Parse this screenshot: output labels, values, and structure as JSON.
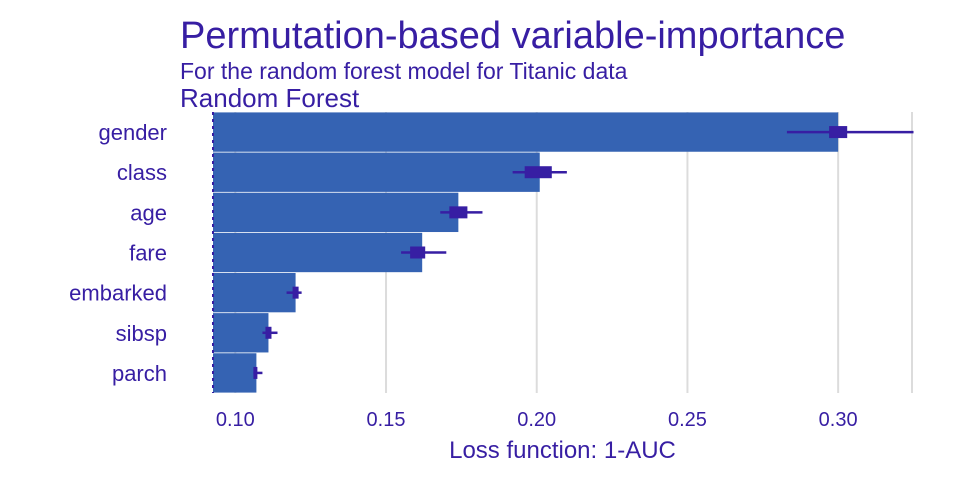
{
  "header": {
    "title": "Permutation-based variable-importance",
    "subtitle": "For the random forest model for Titanic data",
    "model_label": "Random Forest"
  },
  "colors": {
    "bar": "#3563b3",
    "whisker": "#371ea3",
    "text": "#371ea3",
    "grid": "#dcdcdc",
    "baseline": "#371ea3"
  },
  "chart_data": {
    "type": "bar",
    "orientation": "horizontal",
    "title": "Permutation-based variable-importance",
    "subtitle": "For the random forest model for Titanic data",
    "xlabel": "Loss function: 1-AUC",
    "ylabel": "",
    "baseline": 0.0926,
    "xlim": [
      0.0926,
      0.3245
    ],
    "xticks": [
      0.1,
      0.15,
      0.2,
      0.25,
      0.3
    ],
    "xtick_labels": [
      "0.10",
      "0.15",
      "0.20",
      "0.25",
      "0.30"
    ],
    "grid": true,
    "categories": [
      "gender",
      "class",
      "age",
      "fare",
      "embarked",
      "sibsp",
      "parch"
    ],
    "series": [
      {
        "name": "Random Forest",
        "values": [
          0.3,
          0.201,
          0.174,
          0.162,
          0.12,
          0.111,
          0.107
        ],
        "box_low": [
          0.297,
          0.196,
          0.171,
          0.158,
          0.119,
          0.11,
          0.106
        ],
        "box_high": [
          0.303,
          0.205,
          0.177,
          0.163,
          0.121,
          0.112,
          0.107
        ],
        "whisker_low": [
          0.283,
          0.192,
          0.168,
          0.155,
          0.117,
          0.109,
          0.106
        ],
        "whisker_high": [
          0.325,
          0.21,
          0.182,
          0.17,
          0.122,
          0.114,
          0.109
        ]
      }
    ]
  }
}
